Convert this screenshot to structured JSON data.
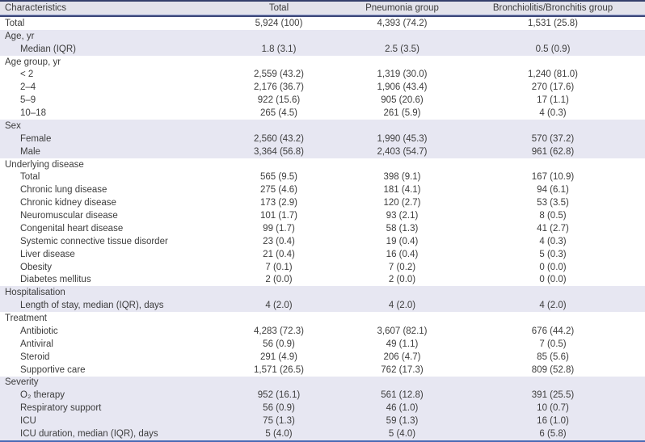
{
  "table": {
    "header": {
      "characteristics": "Characteristics",
      "total": "Total",
      "pneumonia": "Pneumonia group",
      "bronchiolitis": "Bronchiolitis/Bronchitis group"
    },
    "rows": [
      {
        "label": "Total",
        "indent": 0,
        "section": false,
        "shaded": false,
        "values": [
          "5,924 (100)",
          "4,393 (74.2)",
          "1,531 (25.8)"
        ]
      },
      {
        "label": "Age, yr",
        "indent": 0,
        "section": true,
        "shaded": true,
        "values": null
      },
      {
        "label": "Median (IQR)",
        "indent": 1,
        "section": false,
        "shaded": true,
        "values": [
          "1.8 (3.1)",
          "2.5 (3.5)",
          "0.5 (0.9)"
        ]
      },
      {
        "label": "Age group, yr",
        "indent": 0,
        "section": true,
        "shaded": false,
        "values": null
      },
      {
        "label": "< 2",
        "indent": 1,
        "section": false,
        "shaded": false,
        "values": [
          "2,559 (43.2)",
          "1,319 (30.0)",
          "1,240 (81.0)"
        ]
      },
      {
        "label": "2–4",
        "indent": 1,
        "section": false,
        "shaded": false,
        "values": [
          "2,176 (36.7)",
          "1,906 (43.4)",
          "270 (17.6)"
        ]
      },
      {
        "label": "5–9",
        "indent": 1,
        "section": false,
        "shaded": false,
        "values": [
          "922 (15.6)",
          "905 (20.6)",
          "17 (1.1)"
        ]
      },
      {
        "label": "10–18",
        "indent": 1,
        "section": false,
        "shaded": false,
        "values": [
          "265 (4.5)",
          "261 (5.9)",
          "4 (0.3)"
        ]
      },
      {
        "label": "Sex",
        "indent": 0,
        "section": true,
        "shaded": true,
        "values": null
      },
      {
        "label": "Female",
        "indent": 1,
        "section": false,
        "shaded": true,
        "values": [
          "2,560 (43.2)",
          "1,990 (45.3)",
          "570 (37.2)"
        ]
      },
      {
        "label": "Male",
        "indent": 1,
        "section": false,
        "shaded": true,
        "values": [
          "3,364 (56.8)",
          "2,403 (54.7)",
          "961 (62.8)"
        ]
      },
      {
        "label": "Underlying disease",
        "indent": 0,
        "section": true,
        "shaded": false,
        "values": null
      },
      {
        "label": "Total",
        "indent": 1,
        "section": false,
        "shaded": false,
        "values": [
          "565 (9.5)",
          "398 (9.1)",
          "167 (10.9)"
        ]
      },
      {
        "label": "Chronic lung disease",
        "indent": 1,
        "section": false,
        "shaded": false,
        "values": [
          "275 (4.6)",
          "181 (4.1)",
          "94 (6.1)"
        ]
      },
      {
        "label": "Chronic kidney disease",
        "indent": 1,
        "section": false,
        "shaded": false,
        "values": [
          "173 (2.9)",
          "120 (2.7)",
          "53 (3.5)"
        ]
      },
      {
        "label": "Neuromuscular disease",
        "indent": 1,
        "section": false,
        "shaded": false,
        "values": [
          "101 (1.7)",
          "93 (2.1)",
          "8 (0.5)"
        ]
      },
      {
        "label": "Congenital heart disease",
        "indent": 1,
        "section": false,
        "shaded": false,
        "values": [
          "99 (1.7)",
          "58 (1.3)",
          "41 (2.7)"
        ]
      },
      {
        "label": "Systemic connective tissue disorder",
        "indent": 1,
        "section": false,
        "shaded": false,
        "values": [
          "23 (0.4)",
          "19 (0.4)",
          "4 (0.3)"
        ]
      },
      {
        "label": "Liver disease",
        "indent": 1,
        "section": false,
        "shaded": false,
        "values": [
          "21 (0.4)",
          "16 (0.4)",
          "5 (0.3)"
        ]
      },
      {
        "label": "Obesity",
        "indent": 1,
        "section": false,
        "shaded": false,
        "values": [
          "7 (0.1)",
          "7 (0.2)",
          "0 (0.0)"
        ]
      },
      {
        "label": "Diabetes mellitus",
        "indent": 1,
        "section": false,
        "shaded": false,
        "values": [
          "2 (0.0)",
          "2 (0.0)",
          "0 (0.0)"
        ]
      },
      {
        "label": "Hospitalisation",
        "indent": 0,
        "section": true,
        "shaded": true,
        "values": null
      },
      {
        "label": "Length of stay, median (IQR), days",
        "indent": 1,
        "section": false,
        "shaded": true,
        "values": [
          "4 (2.0)",
          "4 (2.0)",
          "4 (2.0)"
        ]
      },
      {
        "label": "Treatment",
        "indent": 0,
        "section": true,
        "shaded": false,
        "values": null
      },
      {
        "label": "Antibiotic",
        "indent": 1,
        "section": false,
        "shaded": false,
        "values": [
          "4,283 (72.3)",
          "3,607 (82.1)",
          "676 (44.2)"
        ]
      },
      {
        "label": "Antiviral",
        "indent": 1,
        "section": false,
        "shaded": false,
        "values": [
          "56 (0.9)",
          "49 (1.1)",
          "7 (0.5)"
        ]
      },
      {
        "label": "Steroid",
        "indent": 1,
        "section": false,
        "shaded": false,
        "values": [
          "291 (4.9)",
          "206 (4.7)",
          "85 (5.6)"
        ]
      },
      {
        "label": "Supportive care",
        "indent": 1,
        "section": false,
        "shaded": false,
        "values": [
          "1,571 (26.5)",
          "762 (17.3)",
          "809 (52.8)"
        ]
      },
      {
        "label": "Severity",
        "indent": 0,
        "section": true,
        "shaded": true,
        "values": null
      },
      {
        "label": "O₂ therapy",
        "indent": 1,
        "section": false,
        "shaded": true,
        "values": [
          "952 (16.1)",
          "561 (12.8)",
          "391 (25.5)"
        ]
      },
      {
        "label": "Respiratory support",
        "indent": 1,
        "section": false,
        "shaded": true,
        "values": [
          "56 (0.9)",
          "46 (1.0)",
          "10 (0.7)"
        ]
      },
      {
        "label": "ICU",
        "indent": 1,
        "section": false,
        "shaded": true,
        "values": [
          "75 (1.3)",
          "59 (1.3)",
          "16 (1.0)"
        ]
      },
      {
        "label": "ICU duration, median (IQR), days",
        "indent": 1,
        "section": false,
        "shaded": true,
        "values": [
          "5 (4.0)",
          "5 (4.0)",
          "6 (5.8)"
        ]
      }
    ]
  },
  "colors": {
    "top_border": "#343f6b",
    "header_bg": "#e3e3eb",
    "header_rule": "#3b4778",
    "shaded_row_bg": "#e7e7f2",
    "bottom_border": "#4a69b4",
    "text": "#3d3d3d"
  }
}
